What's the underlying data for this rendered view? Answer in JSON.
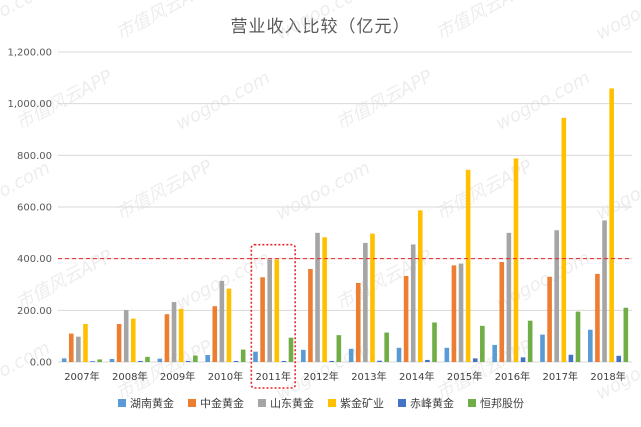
{
  "chart_data": {
    "type": "bar",
    "title": "营业收入比较（亿元）",
    "categories": [
      "2007年",
      "2008年",
      "2009年",
      "2010年",
      "2011年",
      "2012年",
      "2013年",
      "2014年",
      "2015年",
      "2016年",
      "2017年",
      "2018年"
    ],
    "series": [
      {
        "name": "湖南黄金",
        "color": "#5B9BD5",
        "values": [
          14,
          12,
          13,
          27,
          40,
          47,
          51,
          55,
          55,
          66,
          106,
          125
        ]
      },
      {
        "name": "中金黄金",
        "color": "#ED7D31",
        "values": [
          110,
          147,
          185,
          216,
          328,
          360,
          306,
          333,
          374,
          387,
          330,
          341
        ]
      },
      {
        "name": "山东黄金",
        "color": "#A5A5A5",
        "values": [
          98,
          201,
          232,
          314,
          397,
          500,
          461,
          455,
          381,
          500,
          510,
          548
        ]
      },
      {
        "name": "紫金矿业",
        "color": "#FFC000",
        "values": [
          147,
          168,
          206,
          284,
          397,
          483,
          497,
          587,
          744,
          788,
          945,
          1059
        ]
      },
      {
        "name": "赤峰黄金",
        "color": "#4472C4",
        "values": [
          3,
          4,
          4,
          4,
          4,
          4,
          5,
          8,
          14,
          18,
          28,
          24
        ]
      },
      {
        "name": "恒邦股份",
        "color": "#70AD47",
        "values": [
          10,
          20,
          25,
          48,
          94,
          104,
          114,
          153,
          140,
          160,
          195,
          210
        ]
      }
    ],
    "ylim": [
      0,
      1200
    ],
    "yticks": [
      0,
      200,
      400,
      600,
      800,
      1000,
      1200
    ],
    "ytick_labels": [
      "0.00",
      "200.00",
      "400.00",
      "600.00",
      "800.00",
      "1,000.00",
      "1,200.00"
    ],
    "reference_line": {
      "value": 400,
      "color": "#e8262a",
      "style": "dashed"
    },
    "highlight_category": "2011年",
    "legend_position": "bottom",
    "grid": true
  },
  "watermarks": [
    "wogoo.com",
    "市值风云APP"
  ]
}
